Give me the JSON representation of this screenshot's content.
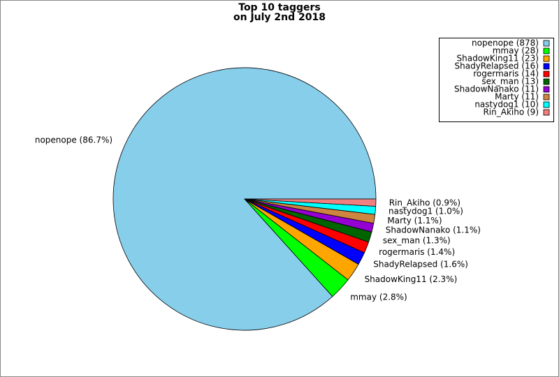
{
  "chart_data": {
    "type": "pie",
    "title": "Top 10 taggers",
    "subtitle": "on July 2nd 2018",
    "categories": [
      "nopenope",
      "mmay",
      "ShadowKing11",
      "ShadyRelapsed",
      "rogermaris",
      "sex_man",
      "ShadowNanako",
      "Marty",
      "nastydog1",
      "Rin_Akiho"
    ],
    "values": [
      878,
      28,
      23,
      16,
      14,
      13,
      11,
      11,
      10,
      9
    ],
    "slice_labels": [
      "nopenope (86.7%)",
      "mmay (2.8%)",
      "ShadowKing11 (2.3%)",
      "ShadyRelapsed (1.6%)",
      "rogermaris (1.4%)",
      "sex_man (1.3%)",
      "ShadowNanako (1.1%)",
      "Marty (1.1%)",
      "nastydog1 (1.0%)",
      "Rin_Akiho (0.9%)"
    ],
    "legend_labels": [
      "nopenope (878)",
      "mmay (28)",
      "ShadowKing11 (23)",
      "ShadyRelapsed (16)",
      "rogermaris (14)",
      "sex_man (13)",
      "ShadowNanako (11)",
      "Marty (11)",
      "nastydog1 (10)",
      "Rin_Akiho (9)"
    ],
    "colors": [
      "#87ceeb",
      "#00ff00",
      "#ffa500",
      "#0000ff",
      "#ff0000",
      "#006400",
      "#9400d3",
      "#cd853f",
      "#00ffff",
      "#f08080"
    ],
    "legend": "upper right"
  }
}
